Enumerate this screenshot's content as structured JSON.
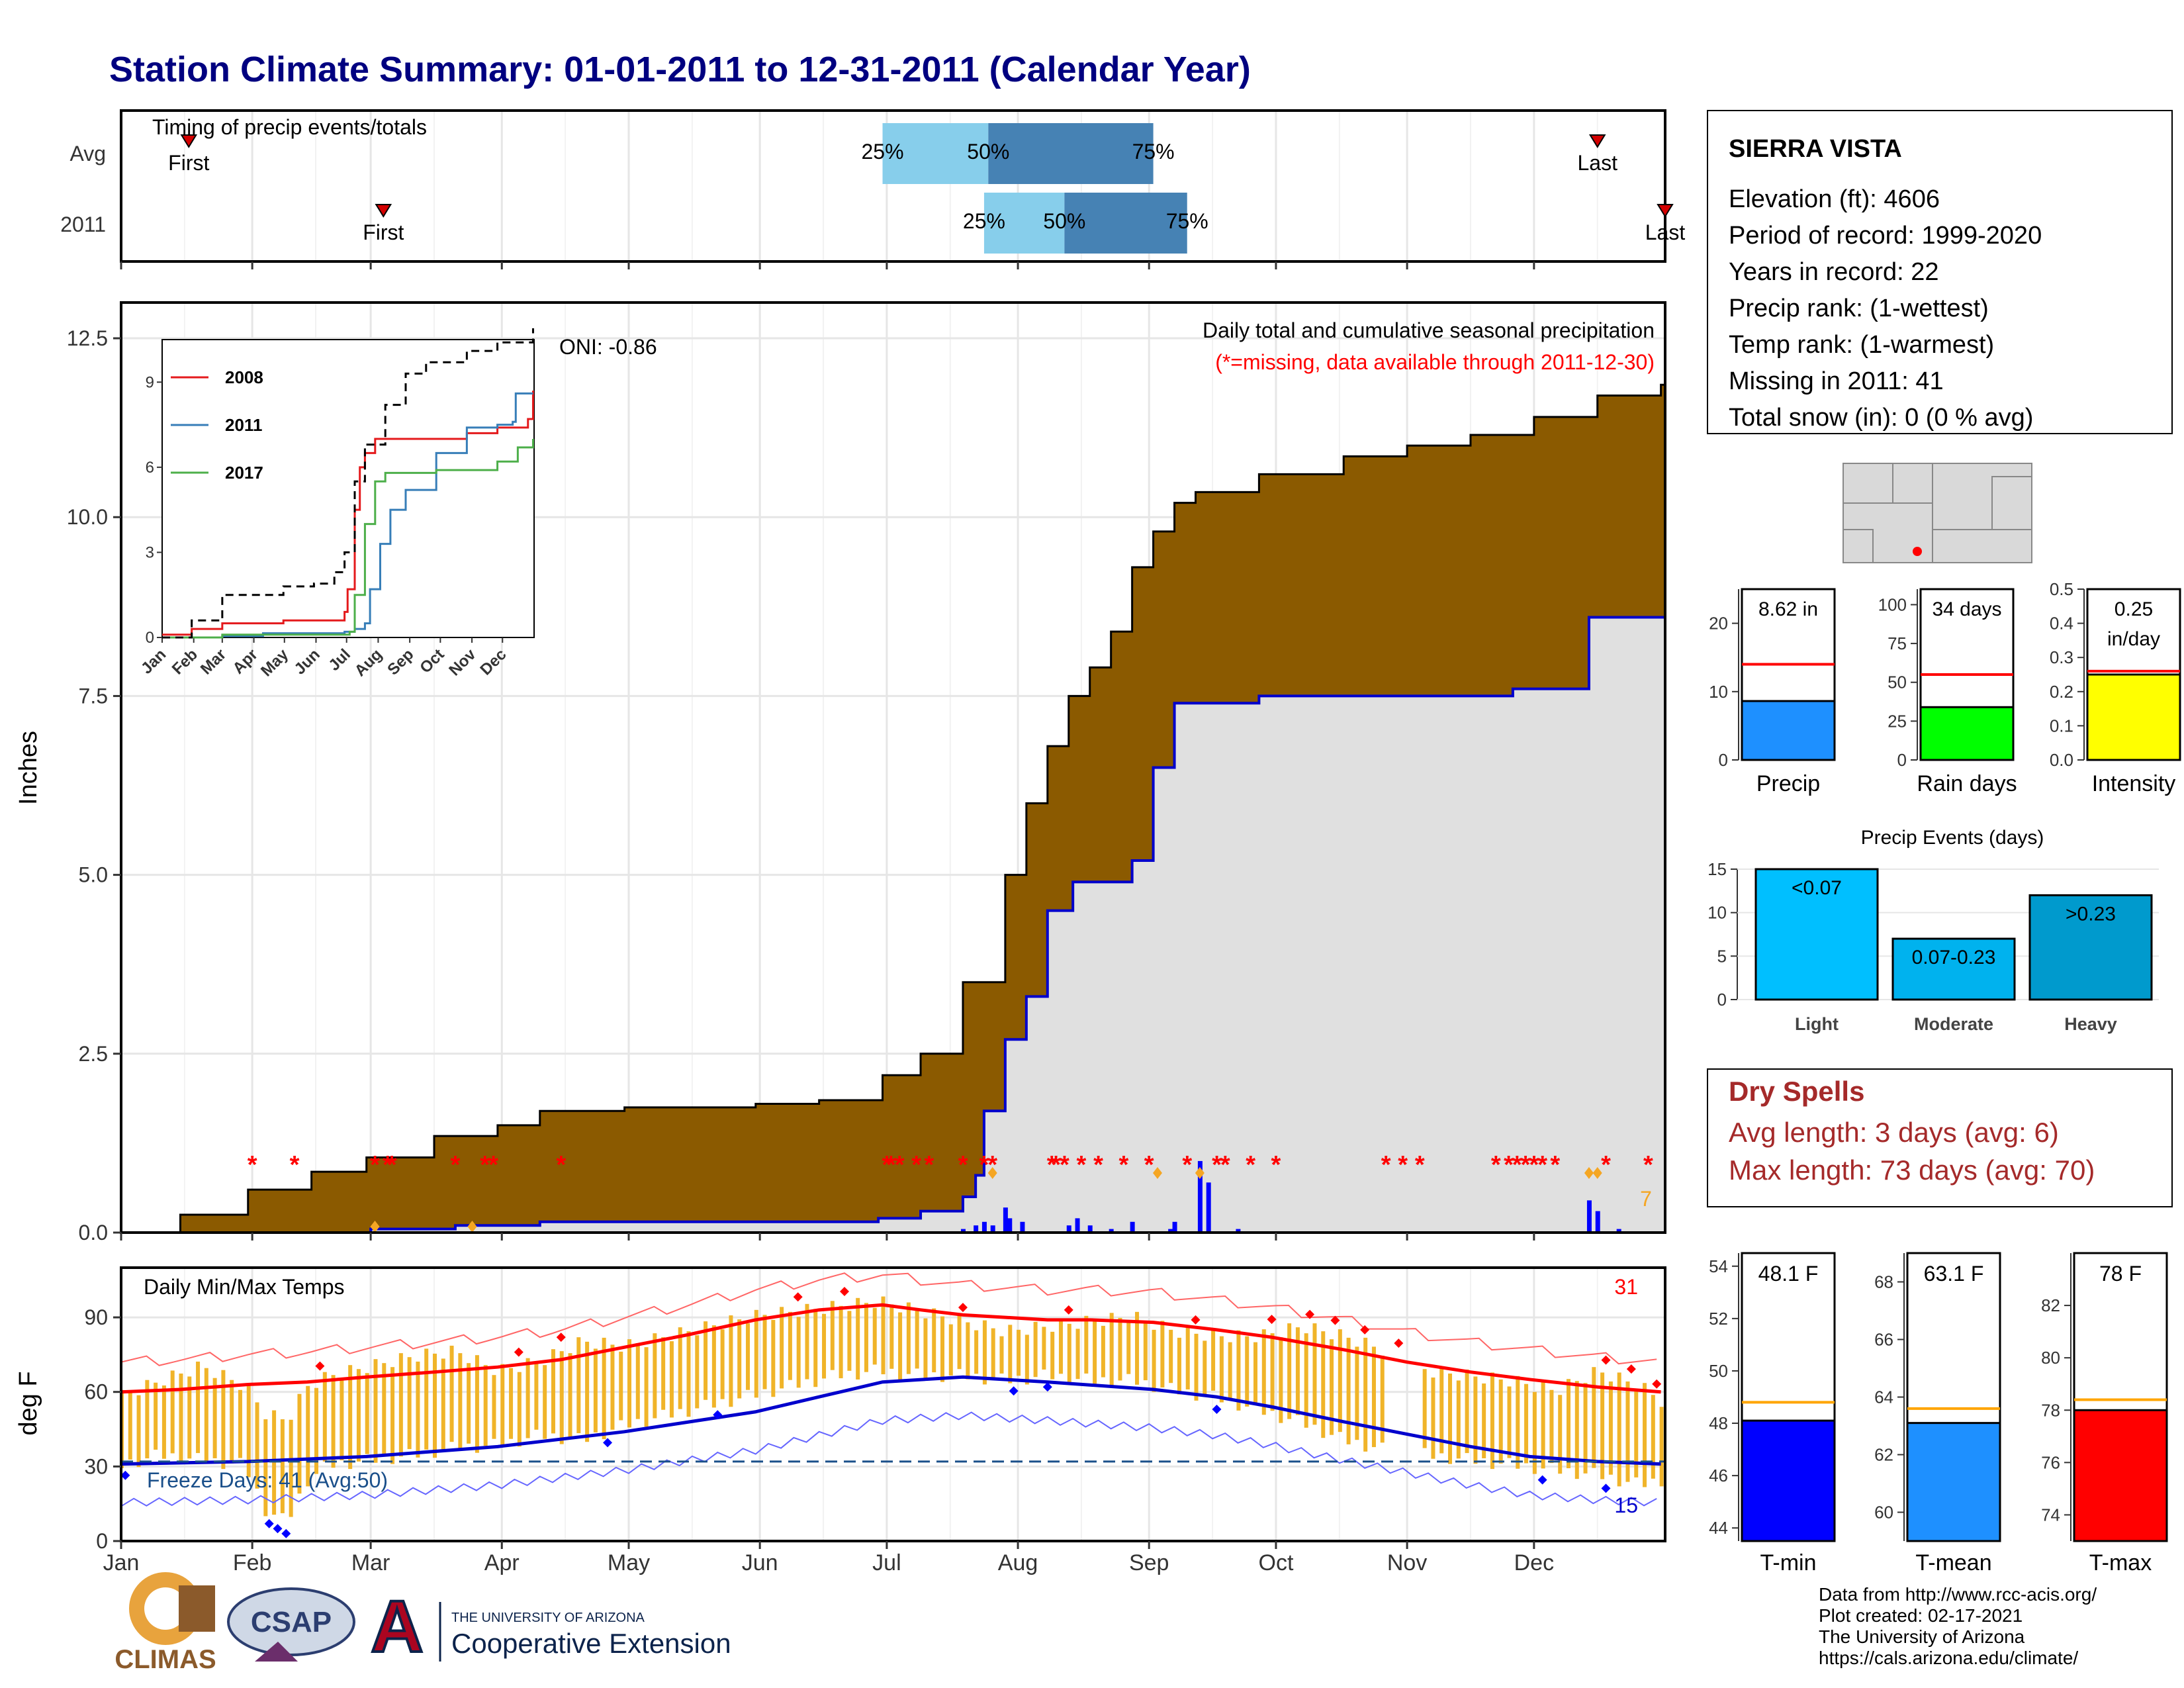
{
  "title": "Station Climate Summary: 01-01-2011 to 12-31-2011 (Calendar Year)",
  "months": [
    "Jan",
    "Feb",
    "Mar",
    "Apr",
    "May",
    "Jun",
    "Jul",
    "Aug",
    "Sep",
    "Oct",
    "Nov",
    "Dec"
  ],
  "timing": {
    "title": "Timing of precip events/totals",
    "rows": [
      "Avg",
      "2011"
    ],
    "first_label": "First",
    "last_label": "Last",
    "pct_labels": [
      "25%",
      "50%",
      "75%"
    ]
  },
  "station": {
    "name": "SIERRA VISTA",
    "lines": [
      "Elevation (ft): 4606",
      "Period of record: 1999-2020",
      "Years in record: 22",
      "Precip rank:  (1-wettest)",
      "Temp rank:  (1-warmest)",
      "Missing in 2011: 41",
      "Total snow (in): 0 (0 % avg)"
    ]
  },
  "precip_panel": {
    "ylabel": "Inches",
    "yticks": [
      "0.0",
      "2.5",
      "5.0",
      "7.5",
      "10.0",
      "12.5"
    ],
    "title": "Daily total and cumulative seasonal precipitation",
    "subtitle": "(*=missing, data available through 2011-12-30)",
    "oni": "ONI: -0.86",
    "count_label": "7"
  },
  "inset": {
    "yticks": [
      "0",
      "3",
      "6",
      "9"
    ],
    "months": [
      "Jan",
      "Feb",
      "Mar",
      "Apr",
      "May",
      "Jun",
      "Jul",
      "Aug",
      "Sep",
      "Oct",
      "Nov",
      "Dec"
    ],
    "legend": [
      "2008",
      "2011",
      "2017"
    ]
  },
  "summary_bars": {
    "precip": {
      "label": "Precip",
      "value_text": "8.62 in",
      "yticks": [
        "0",
        "10",
        "20"
      ]
    },
    "rain_days": {
      "label": "Rain days",
      "value_text": "34 days",
      "yticks": [
        "0",
        "25",
        "50",
        "75",
        "100"
      ]
    },
    "intensity": {
      "label": "Intensity",
      "value_text_1": "0.25",
      "value_text_2": "in/day",
      "yticks": [
        "0.0",
        "0.1",
        "0.2",
        "0.3",
        "0.4",
        "0.5"
      ]
    }
  },
  "events": {
    "title": "Precip Events (days)",
    "yticks": [
      "0",
      "5",
      "10",
      "15"
    ],
    "bars": [
      {
        "label": "Light",
        "text": "<0.07"
      },
      {
        "label": "Moderate",
        "text": "0.07-0.23"
      },
      {
        "label": "Heavy",
        "text": ">0.23"
      }
    ]
  },
  "dry_spells": {
    "title": "Dry Spells",
    "avg": "Avg length: 3 days (avg: 6)",
    "max": "Max length: 73 days (avg: 70)"
  },
  "temp_panel": {
    "title": "Daily Min/Max Temps",
    "ylabel": "deg F",
    "yticks": [
      "0",
      "30",
      "60",
      "90"
    ],
    "freeze": "Freeze Days: 41 (Avg:50)",
    "high_count": "31",
    "low_count": "15"
  },
  "temp_bars": {
    "tmin": {
      "label": "T-min",
      "value_text": "48.1 F",
      "yticks": [
        "44",
        "46",
        "48",
        "50",
        "52",
        "54"
      ]
    },
    "tmean": {
      "label": "T-mean",
      "value_text": "63.1 F",
      "yticks": [
        "60",
        "62",
        "64",
        "66",
        "68"
      ]
    },
    "tmax": {
      "label": "T-max",
      "value_text": "78 F",
      "yticks": [
        "74",
        "76",
        "78",
        "80",
        "82"
      ]
    }
  },
  "footer": {
    "climas": "CLIMAS",
    "csap": "CSAP",
    "ua_small": "THE UNIVERSITY OF ARIZONA",
    "ua_big": "Cooperative Extension",
    "credits": [
      "Data from http://www.rcc-acis.org/",
      "Plot created: 02-17-2021",
      "The University of Arizona",
      "https://cals.arizona.edu/climate/"
    ]
  },
  "colors": {
    "title": "#000080",
    "cumulative_avg": "#8B5A00",
    "cumulative_2011": "#0000CC",
    "missing": "#FF0000",
    "bar_2011": "#4682B4",
    "bar_avg": "#87CEEB",
    "tmax_line": "#FF0000",
    "tmin_line": "#0000CC",
    "temp_bar": "#F0B429",
    "precip_bar": "#1E90FF",
    "rain_bar": "#00FF00",
    "intensity_bar": "#FFFF00",
    "light": "#00BFFF",
    "moderate": "#00B2EE",
    "heavy": "#009ACD",
    "tmin_bar": "#0000FF",
    "tmean_bar": "#1E90FF",
    "tmax_bar": "#FF0000",
    "dry": "#A52A2A"
  },
  "chart_data": [
    {
      "type": "bar",
      "name": "timing",
      "rows": [
        "Avg",
        "2011"
      ],
      "first_doy": [
        17,
        63
      ],
      "last_doy": [
        350,
        366
      ],
      "pct25_doy": [
        181,
        205
      ],
      "pct50_doy": [
        206,
        224
      ],
      "pct75_doy": [
        245,
        253
      ]
    },
    {
      "type": "area",
      "name": "cumulative_precip",
      "ylim": [
        0,
        13
      ],
      "avg_cum_x": [
        1,
        15,
        31,
        46,
        59,
        75,
        90,
        100,
        120,
        151,
        166,
        181,
        190,
        200,
        210,
        215,
        220,
        225,
        230,
        235,
        240,
        245,
        250,
        255,
        270,
        290,
        305,
        320,
        335,
        350,
        365
      ],
      "avg_cum_y": [
        0,
        0.25,
        0.6,
        0.85,
        1.05,
        1.35,
        1.5,
        1.7,
        1.75,
        1.8,
        1.85,
        2.2,
        2.5,
        3.5,
        5.0,
        6.0,
        6.8,
        7.5,
        7.9,
        8.4,
        9.3,
        9.8,
        10.2,
        10.35,
        10.6,
        10.85,
        11.0,
        11.15,
        11.4,
        11.7,
        11.85
      ],
      "y2011_cum_x": [
        1,
        60,
        80,
        100,
        180,
        190,
        200,
        203,
        205,
        210,
        215,
        220,
        225,
        226,
        240,
        245,
        250,
        255,
        257,
        270,
        300,
        330,
        345,
        348,
        365
      ],
      "y2011_cum_y": [
        0,
        0.05,
        0.1,
        0.15,
        0.2,
        0.3,
        0.5,
        0.8,
        1.7,
        2.7,
        3.3,
        4.5,
        4.5,
        4.9,
        5.2,
        6.5,
        7.4,
        7.4,
        7.4,
        7.5,
        7.5,
        7.6,
        7.6,
        8.6,
        8.6
      ],
      "daily_x": [
        200,
        203,
        205,
        207,
        210,
        211,
        214,
        225,
        227,
        230,
        235,
        240,
        249,
        250,
        256,
        258,
        265,
        348,
        350,
        355
      ],
      "daily_y": [
        0.05,
        0.1,
        0.15,
        0.1,
        0.35,
        0.2,
        0.15,
        0.1,
        0.2,
        0.1,
        0.05,
        0.15,
        0.05,
        0.15,
        1.0,
        0.7,
        0.05,
        0.45,
        0.3,
        0.05
      ],
      "missing_doy": [
        32,
        42,
        61,
        64,
        65,
        80,
        87,
        89,
        105,
        182,
        183,
        185,
        189,
        192,
        200,
        205,
        207,
        221,
        222,
        224,
        228,
        232,
        238,
        244,
        253,
        260,
        262,
        268,
        274,
        300,
        304,
        308,
        326,
        329,
        331,
        333,
        335,
        337,
        340,
        352,
        362,
        369
      ]
    },
    {
      "type": "line",
      "name": "inset_cumulative",
      "xlabel": "",
      "ylim": [
        0,
        10.5
      ],
      "series": [
        {
          "name": "2008",
          "x": [
            1,
            30,
            60,
            120,
            180,
            183,
            190,
            195,
            200,
            210,
            240,
            300,
            330,
            340,
            360,
            365
          ],
          "y": [
            0.1,
            0.3,
            0.5,
            0.6,
            0.9,
            1.7,
            4.5,
            6.0,
            6.5,
            7.0,
            7.0,
            7.2,
            7.4,
            7.4,
            7.7,
            8.7
          ]
        },
        {
          "name": "2011",
          "x": [
            1,
            60,
            100,
            180,
            190,
            200,
            205,
            215,
            225,
            240,
            270,
            300,
            330,
            345,
            348,
            365
          ],
          "y": [
            0,
            0.05,
            0.15,
            0.2,
            0.3,
            0.5,
            1.7,
            3.3,
            4.5,
            5.2,
            6.5,
            7.4,
            7.5,
            7.6,
            8.6,
            8.6
          ]
        },
        {
          "name": "2017",
          "x": [
            1,
            60,
            150,
            185,
            190,
            200,
            210,
            220,
            240,
            270,
            330,
            350,
            365
          ],
          "y": [
            0,
            0.1,
            0.1,
            0.2,
            1.5,
            4.0,
            5.5,
            5.8,
            5.8,
            5.9,
            6.2,
            6.7,
            7.0
          ]
        },
        {
          "name": "avg",
          "x": [
            1,
            30,
            60,
            120,
            150,
            170,
            180,
            190,
            200,
            220,
            240,
            260,
            300,
            330,
            365
          ],
          "y": [
            0,
            0.6,
            1.5,
            1.8,
            1.9,
            2.3,
            3.0,
            5.5,
            6.8,
            8.2,
            9.3,
            9.7,
            10.1,
            10.4,
            10.9
          ]
        }
      ]
    },
    {
      "type": "bar",
      "name": "summary",
      "categories": [
        "Precip",
        "Rain days",
        "Intensity"
      ],
      "values": [
        8.62,
        34,
        0.25
      ],
      "avg_values": [
        14,
        55,
        0.26
      ],
      "ylims": [
        [
          0,
          25
        ],
        [
          0,
          110
        ],
        [
          0,
          0.5
        ]
      ]
    },
    {
      "type": "bar",
      "name": "precip_events",
      "categories": [
        "Light",
        "Moderate",
        "Heavy"
      ],
      "values": [
        15,
        7,
        12
      ],
      "ylim": [
        0,
        15
      ]
    },
    {
      "type": "line",
      "name": "daily_temps",
      "ylim": [
        0,
        110
      ],
      "tmax_avg_x": [
        1,
        15,
        31,
        45,
        59,
        75,
        90,
        105,
        120,
        135,
        151,
        166,
        181,
        190,
        200,
        210,
        220,
        230,
        245,
        260,
        273,
        290,
        305,
        320,
        334,
        350,
        365
      ],
      "tmax_avg_y": [
        60,
        61,
        63,
        64,
        66,
        68,
        70,
        73,
        78,
        83,
        89,
        93,
        95,
        93,
        91,
        90,
        89,
        89,
        88,
        85,
        82,
        77,
        72,
        68,
        65,
        62,
        60
      ],
      "tmin_avg_x": [
        1,
        31,
        59,
        90,
        120,
        151,
        166,
        181,
        200,
        220,
        245,
        260,
        273,
        290,
        305,
        320,
        334,
        350,
        365
      ],
      "tmin_avg_y": [
        31,
        32,
        34,
        38,
        44,
        52,
        58,
        64,
        66,
        64,
        61,
        58,
        54,
        48,
        43,
        38,
        34,
        32,
        31
      ],
      "tmax_daily_x": [
        1,
        10,
        20,
        30,
        35,
        40,
        45,
        50,
        60,
        70,
        80,
        90,
        100,
        110,
        120,
        130,
        140,
        150,
        160,
        170,
        180,
        190,
        200,
        210,
        220,
        230,
        240,
        250,
        260,
        270,
        280,
        290,
        300,
        310,
        320,
        330,
        340,
        350,
        360,
        365
      ],
      "tmax_daily_y": [
        62,
        68,
        74,
        66,
        55,
        52,
        66,
        70,
        74,
        78,
        80,
        72,
        76,
        84,
        82,
        86,
        90,
        94,
        96,
        98,
        100,
        96,
        92,
        88,
        90,
        92,
        94,
        88,
        86,
        86,
        90,
        86,
        80,
        72,
        70,
        68,
        64,
        72,
        66,
        60
      ],
      "tmin_daily_x": [
        1,
        10,
        20,
        30,
        35,
        40,
        45,
        50,
        60,
        70,
        80,
        90,
        100,
        110,
        120,
        130,
        140,
        150,
        160,
        170,
        180,
        190,
        200,
        210,
        220,
        230,
        240,
        250,
        260,
        270,
        280,
        290,
        300,
        310,
        320,
        330,
        340,
        350,
        360,
        365
      ],
      "tmin_daily_y": [
        28,
        32,
        30,
        28,
        10,
        5,
        22,
        28,
        30,
        32,
        35,
        36,
        40,
        38,
        44,
        48,
        52,
        56,
        60,
        64,
        66,
        64,
        64,
        62,
        64,
        62,
        62,
        58,
        55,
        50,
        45,
        38,
        34,
        32,
        30,
        28,
        26,
        24,
        20,
        22
      ],
      "freeze_line": 32,
      "freeze_days": 41,
      "freeze_days_avg": 50
    },
    {
      "type": "bar",
      "name": "temp_summary",
      "categories": [
        "T-min",
        "T-mean",
        "T-max"
      ],
      "values": [
        48.1,
        63.1,
        78
      ],
      "avg_values": [
        48.8,
        63.6,
        78.4
      ],
      "ylims": [
        [
          43.5,
          54.5
        ],
        [
          59,
          69
        ],
        [
          73,
          84
        ]
      ]
    }
  ]
}
